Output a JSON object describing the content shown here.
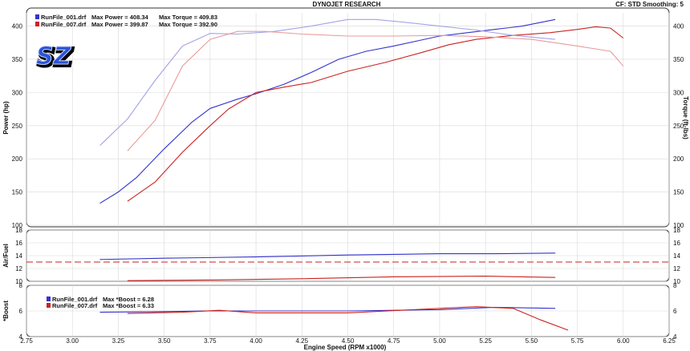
{
  "header": {
    "title": "DYNOJET RESEARCH",
    "settings": "CF: STD  Smoothing: 5"
  },
  "logo": {
    "text": "SZ"
  },
  "legend_main": [
    {
      "file": "RunFile_001.drf",
      "power": "Max Power = 408.34",
      "torque": "Max Torque = 409.83",
      "color": "#3333cc"
    },
    {
      "file": "RunFile_007.drf",
      "power": "Max Power = 399.87",
      "torque": "Max Torque = 392.90",
      "color": "#cc2222"
    }
  ],
  "legend_boost": [
    {
      "file": "RunFile_001.drf",
      "text": "Max *Boost = 6.28",
      "color": "#3333cc"
    },
    {
      "file": "RunFile_007.drf",
      "text": "Max *Boost = 6.33",
      "color": "#cc2222"
    }
  ],
  "chart_data": [
    {
      "type": "line",
      "title": "DYNOJET RESEARCH",
      "xlabel": "Engine Speed (RPM x1000)",
      "ylabel": "Power (hp)",
      "ylabel_right": "Torque (ft-lbs)",
      "xlim": [
        2.75,
        6.25
      ],
      "ylim": [
        100,
        420
      ],
      "x_ticks": [
        "2.75",
        "3.00",
        "3.25",
        "3.50",
        "3.75",
        "4.00",
        "4.25",
        "4.50",
        "4.75",
        "5.00",
        "5.25",
        "5.50",
        "5.75",
        "6.00",
        "6.25"
      ],
      "y_ticks": [
        "100",
        "150",
        "200",
        "250",
        "300",
        "350",
        "400"
      ],
      "series": [
        {
          "name": "RunFile_001.drf",
          "measure": "Power",
          "color": "#3333cc",
          "light": false,
          "x": [
            3.15,
            3.25,
            3.35,
            3.5,
            3.65,
            3.75,
            3.9,
            4.0,
            4.15,
            4.3,
            4.45,
            4.6,
            4.75,
            4.9,
            5.0,
            5.15,
            5.3,
            5.45,
            5.63
          ],
          "y": [
            133,
            150,
            172,
            215,
            255,
            276,
            290,
            298,
            312,
            330,
            350,
            362,
            370,
            379,
            385,
            390,
            395,
            400,
            410
          ]
        },
        {
          "name": "RunFile_007.drf",
          "measure": "Power",
          "color": "#cc2222",
          "light": false,
          "x": [
            3.3,
            3.45,
            3.6,
            3.75,
            3.85,
            4.0,
            4.15,
            4.3,
            4.5,
            4.7,
            4.9,
            5.05,
            5.2,
            5.4,
            5.6,
            5.75,
            5.85,
            5.93,
            6.0
          ],
          "y": [
            136,
            165,
            210,
            250,
            275,
            300,
            308,
            315,
            332,
            345,
            360,
            372,
            380,
            386,
            390,
            395,
            399,
            397,
            382
          ]
        },
        {
          "name": "RunFile_001.drf",
          "measure": "Torque",
          "color": "#3333cc",
          "light": true,
          "x": [
            3.15,
            3.3,
            3.45,
            3.6,
            3.75,
            3.9,
            4.1,
            4.3,
            4.5,
            4.65,
            4.8,
            5.0,
            5.2,
            5.4,
            5.63
          ],
          "y": [
            220,
            260,
            318,
            370,
            389,
            388,
            392,
            400,
            410,
            410,
            406,
            400,
            394,
            386,
            380
          ]
        },
        {
          "name": "RunFile_007.drf",
          "measure": "Torque",
          "color": "#cc2222",
          "light": true,
          "x": [
            3.3,
            3.45,
            3.6,
            3.75,
            3.9,
            4.05,
            4.25,
            4.5,
            4.75,
            5.0,
            5.25,
            5.5,
            5.75,
            5.93,
            6.0
          ],
          "y": [
            212,
            258,
            340,
            380,
            392,
            392,
            388,
            385,
            385,
            386,
            384,
            380,
            370,
            362,
            340
          ]
        }
      ]
    },
    {
      "type": "line",
      "ylabel": "Air/Fuel",
      "xlim": [
        2.75,
        6.25
      ],
      "ylim": [
        10,
        18
      ],
      "y_ticks": [
        "10",
        "12",
        "14",
        "16",
        "18"
      ],
      "reference_line": 13,
      "series": [
        {
          "name": "RunFile_001.drf",
          "color": "#3333cc",
          "x": [
            3.15,
            3.5,
            4.0,
            4.5,
            5.0,
            5.3,
            5.63
          ],
          "y": [
            13.4,
            13.6,
            13.8,
            14.1,
            14.3,
            14.3,
            14.4
          ]
        },
        {
          "name": "RunFile_007.drf",
          "color": "#cc2222",
          "x": [
            3.3,
            3.75,
            4.25,
            4.75,
            5.25,
            5.63
          ],
          "y": [
            10.1,
            10.2,
            10.4,
            10.7,
            10.8,
            10.6
          ]
        }
      ]
    },
    {
      "type": "line",
      "ylabel": "*Boost",
      "xlim": [
        2.75,
        6.25
      ],
      "ylim": [
        4,
        8
      ],
      "y_ticks": [
        "4",
        "6",
        "8"
      ],
      "series": [
        {
          "name": "RunFile_001.drf",
          "color": "#3333cc",
          "x": [
            3.15,
            3.5,
            3.75,
            4.0,
            4.5,
            5.0,
            5.3,
            5.63
          ],
          "y": [
            5.9,
            5.95,
            6.0,
            6.0,
            6.0,
            6.1,
            6.28,
            6.2
          ]
        },
        {
          "name": "RunFile_007.drf",
          "color": "#cc2222",
          "x": [
            3.3,
            3.6,
            3.8,
            4.0,
            4.5,
            5.0,
            5.2,
            5.4,
            5.55,
            5.7
          ],
          "y": [
            5.8,
            5.9,
            6.05,
            5.85,
            5.85,
            6.2,
            6.33,
            6.2,
            5.3,
            4.5
          ]
        }
      ]
    }
  ]
}
